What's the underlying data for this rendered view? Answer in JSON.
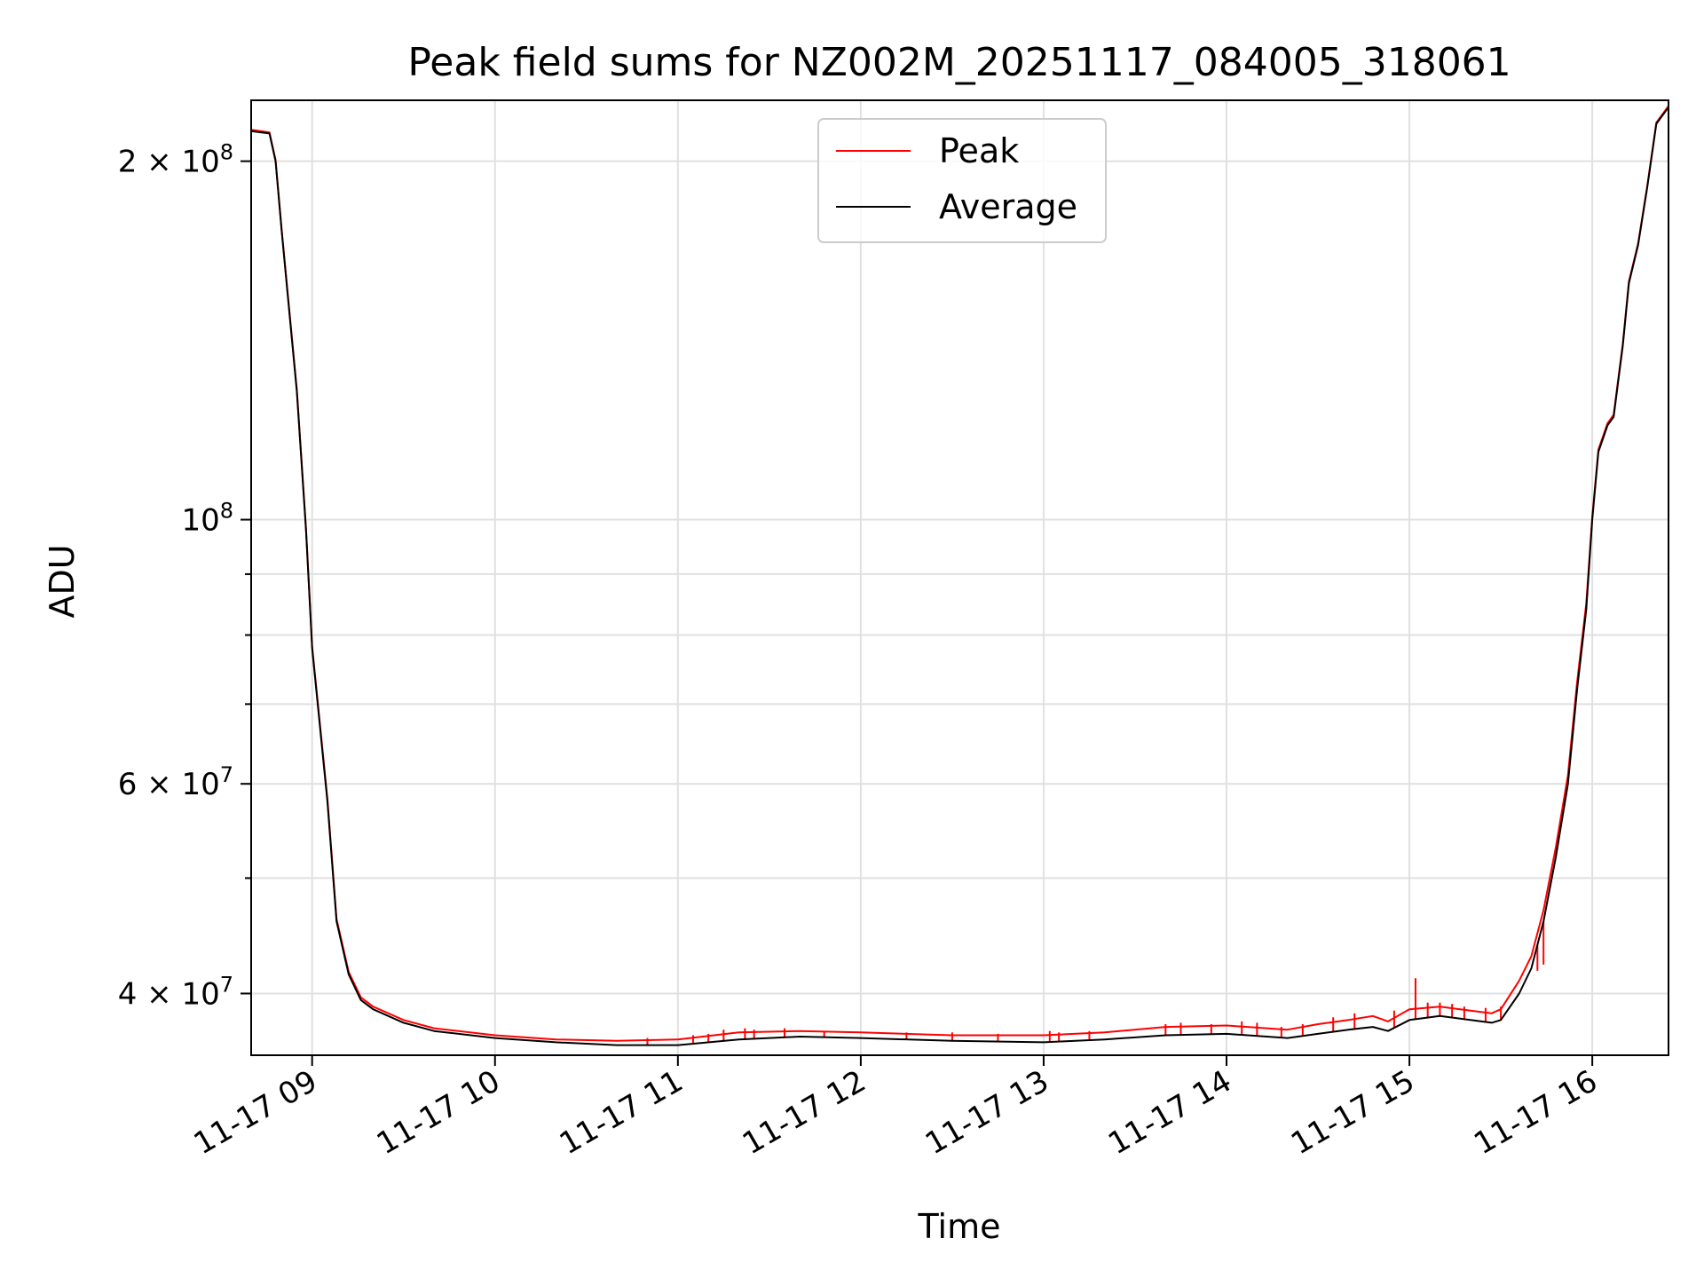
{
  "chart_data": {
    "type": "line",
    "title": "Peak field sums for NZ002M_20251117_084005_318061",
    "xlabel": "Time",
    "ylabel": "ADU",
    "x_type": "time",
    "x_tick_labels": [
      "11-17 09",
      "11-17 10",
      "11-17 11",
      "11-17 12",
      "11-17 13",
      "11-17 14",
      "11-17 15",
      "11-17 16"
    ],
    "xlim": [
      "2025-11-17 08:40",
      "2025-11-17 16:25"
    ],
    "y_scale": "log",
    "ylim": [
      35500000,
      225000000
    ],
    "y_major_ticks": [
      {
        "value": 40000000,
        "mantissa": "4",
        "exponent": "7"
      },
      {
        "value": 60000000,
        "mantissa": "6",
        "exponent": "7"
      },
      {
        "value": 100000000,
        "mantissa": "",
        "exponent": "8"
      },
      {
        "value": 200000000,
        "mantissa": "2",
        "exponent": "8"
      }
    ],
    "y_minor_ticks": [
      50000000,
      70000000,
      80000000,
      90000000
    ],
    "grid": true,
    "legend_position": "top-center",
    "series": [
      {
        "name": "Average",
        "color": "#000000",
        "x": [
          "2025-11-17 08:40",
          "2025-11-17 08:46",
          "2025-11-17 08:48",
          "2025-11-17 08:50",
          "2025-11-17 08:55",
          "2025-11-17 08:58",
          "2025-11-17 09:00",
          "2025-11-17 09:05",
          "2025-11-17 09:08",
          "2025-11-17 09:12",
          "2025-11-17 09:16",
          "2025-11-17 09:20",
          "2025-11-17 09:30",
          "2025-11-17 09:40",
          "2025-11-17 10:00",
          "2025-11-17 10:20",
          "2025-11-17 10:40",
          "2025-11-17 11:00",
          "2025-11-17 11:20",
          "2025-11-17 11:40",
          "2025-11-17 12:00",
          "2025-11-17 12:30",
          "2025-11-17 13:00",
          "2025-11-17 13:20",
          "2025-11-17 13:40",
          "2025-11-17 14:00",
          "2025-11-17 14:20",
          "2025-11-17 14:30",
          "2025-11-17 14:40",
          "2025-11-17 14:48",
          "2025-11-17 14:53",
          "2025-11-17 15:00",
          "2025-11-17 15:10",
          "2025-11-17 15:20",
          "2025-11-17 15:27",
          "2025-11-17 15:30",
          "2025-11-17 15:36",
          "2025-11-17 15:40",
          "2025-11-17 15:44",
          "2025-11-17 15:48",
          "2025-11-17 15:52",
          "2025-11-17 15:55",
          "2025-11-17 15:58",
          "2025-11-17 16:00",
          "2025-11-17 16:02",
          "2025-11-17 16:05",
          "2025-11-17 16:07",
          "2025-11-17 16:10",
          "2025-11-17 16:12",
          "2025-11-17 16:15",
          "2025-11-17 16:18",
          "2025-11-17 16:21",
          "2025-11-17 16:25"
        ],
        "y": [
          212000000,
          211000000,
          200000000,
          175000000,
          128000000,
          98000000,
          78000000,
          58000000,
          46000000,
          41500000,
          39500000,
          38800000,
          37800000,
          37200000,
          36700000,
          36400000,
          36200000,
          36200000,
          36600000,
          36800000,
          36700000,
          36500000,
          36400000,
          36600000,
          36900000,
          37000000,
          36700000,
          37000000,
          37300000,
          37500000,
          37200000,
          38000000,
          38300000,
          38000000,
          37800000,
          38000000,
          40000000,
          42000000,
          46000000,
          52000000,
          60000000,
          72000000,
          84000000,
          100000000,
          114000000,
          120000000,
          122000000,
          140000000,
          158000000,
          170000000,
          190000000,
          215000000,
          222000000
        ]
      },
      {
        "name": "Peak",
        "color": "#ff0000",
        "x": [
          "2025-11-17 08:40",
          "2025-11-17 08:46",
          "2025-11-17 08:48",
          "2025-11-17 08:50",
          "2025-11-17 08:55",
          "2025-11-17 08:58",
          "2025-11-17 09:00",
          "2025-11-17 09:05",
          "2025-11-17 09:08",
          "2025-11-17 09:12",
          "2025-11-17 09:16",
          "2025-11-17 09:20",
          "2025-11-17 09:30",
          "2025-11-17 09:40",
          "2025-11-17 10:00",
          "2025-11-17 10:20",
          "2025-11-17 10:40",
          "2025-11-17 11:00",
          "2025-11-17 11:20",
          "2025-11-17 11:40",
          "2025-11-17 12:00",
          "2025-11-17 12:30",
          "2025-11-17 13:00",
          "2025-11-17 13:20",
          "2025-11-17 13:40",
          "2025-11-17 14:00",
          "2025-11-17 14:20",
          "2025-11-17 14:30",
          "2025-11-17 14:40",
          "2025-11-17 14:48",
          "2025-11-17 14:53",
          "2025-11-17 15:00",
          "2025-11-17 15:10",
          "2025-11-17 15:20",
          "2025-11-17 15:27",
          "2025-11-17 15:30",
          "2025-11-17 15:36",
          "2025-11-17 15:40",
          "2025-11-17 15:44",
          "2025-11-17 15:48",
          "2025-11-17 15:52",
          "2025-11-17 15:55",
          "2025-11-17 15:58",
          "2025-11-17 16:00",
          "2025-11-17 16:02",
          "2025-11-17 16:05",
          "2025-11-17 16:07",
          "2025-11-17 16:10",
          "2025-11-17 16:12",
          "2025-11-17 16:15",
          "2025-11-17 16:18",
          "2025-11-17 16:21",
          "2025-11-17 16:25"
        ],
        "y": [
          212500000,
          211500000,
          200500000,
          175500000,
          128500000,
          98300000,
          78300000,
          58300000,
          46200000,
          41700000,
          39700000,
          39000000,
          38000000,
          37400000,
          36900000,
          36600000,
          36500000,
          36600000,
          37100000,
          37200000,
          37100000,
          36900000,
          36900000,
          37100000,
          37500000,
          37600000,
          37300000,
          37700000,
          38000000,
          38300000,
          37900000,
          38800000,
          39000000,
          38700000,
          38500000,
          38800000,
          41000000,
          43000000,
          47000000,
          53000000,
          61000000,
          73000000,
          85000000,
          100500000,
          114500000,
          120500000,
          122500000,
          140500000,
          158500000,
          170500000,
          190500000,
          215500000,
          222500000
        ],
        "spikes": [
          {
            "x": "2025-11-17 10:50",
            "y": 36700000
          },
          {
            "x": "2025-11-17 11:05",
            "y": 36900000
          },
          {
            "x": "2025-11-17 11:10",
            "y": 37000000
          },
          {
            "x": "2025-11-17 11:15",
            "y": 37300000
          },
          {
            "x": "2025-11-17 11:22",
            "y": 37400000
          },
          {
            "x": "2025-11-17 11:25",
            "y": 37300000
          },
          {
            "x": "2025-11-17 11:35",
            "y": 37400000
          },
          {
            "x": "2025-11-17 11:48",
            "y": 37200000
          },
          {
            "x": "2025-11-17 12:15",
            "y": 37100000
          },
          {
            "x": "2025-11-17 12:30",
            "y": 37100000
          },
          {
            "x": "2025-11-17 12:45",
            "y": 37000000
          },
          {
            "x": "2025-11-17 13:02",
            "y": 37200000
          },
          {
            "x": "2025-11-17 13:05",
            "y": 37100000
          },
          {
            "x": "2025-11-17 13:15",
            "y": 37200000
          },
          {
            "x": "2025-11-17 13:40",
            "y": 37700000
          },
          {
            "x": "2025-11-17 13:45",
            "y": 37800000
          },
          {
            "x": "2025-11-17 13:55",
            "y": 37700000
          },
          {
            "x": "2025-11-17 14:05",
            "y": 37900000
          },
          {
            "x": "2025-11-17 14:10",
            "y": 37800000
          },
          {
            "x": "2025-11-17 14:18",
            "y": 37500000
          },
          {
            "x": "2025-11-17 14:25",
            "y": 37700000
          },
          {
            "x": "2025-11-17 14:35",
            "y": 38200000
          },
          {
            "x": "2025-11-17 14:42",
            "y": 38500000
          },
          {
            "x": "2025-11-17 14:55",
            "y": 38700000
          },
          {
            "x": "2025-11-17 15:02",
            "y": 41200000
          },
          {
            "x": "2025-11-17 15:06",
            "y": 39300000
          },
          {
            "x": "2025-11-17 15:10",
            "y": 39300000
          },
          {
            "x": "2025-11-17 15:14",
            "y": 39200000
          },
          {
            "x": "2025-11-17 15:18",
            "y": 39000000
          },
          {
            "x": "2025-11-17 15:25",
            "y": 38900000
          },
          {
            "x": "2025-11-17 15:30",
            "y": 39000000
          },
          {
            "x": "2025-11-17 15:34",
            "y": 39300000
          },
          {
            "x": "2025-11-17 15:42",
            "y": 41800000
          },
          {
            "x": "2025-11-17 15:44",
            "y": 42300000
          }
        ]
      }
    ],
    "legend": [
      {
        "name": "Peak",
        "color": "#ff0000"
      },
      {
        "name": "Average",
        "color": "#000000"
      }
    ]
  }
}
